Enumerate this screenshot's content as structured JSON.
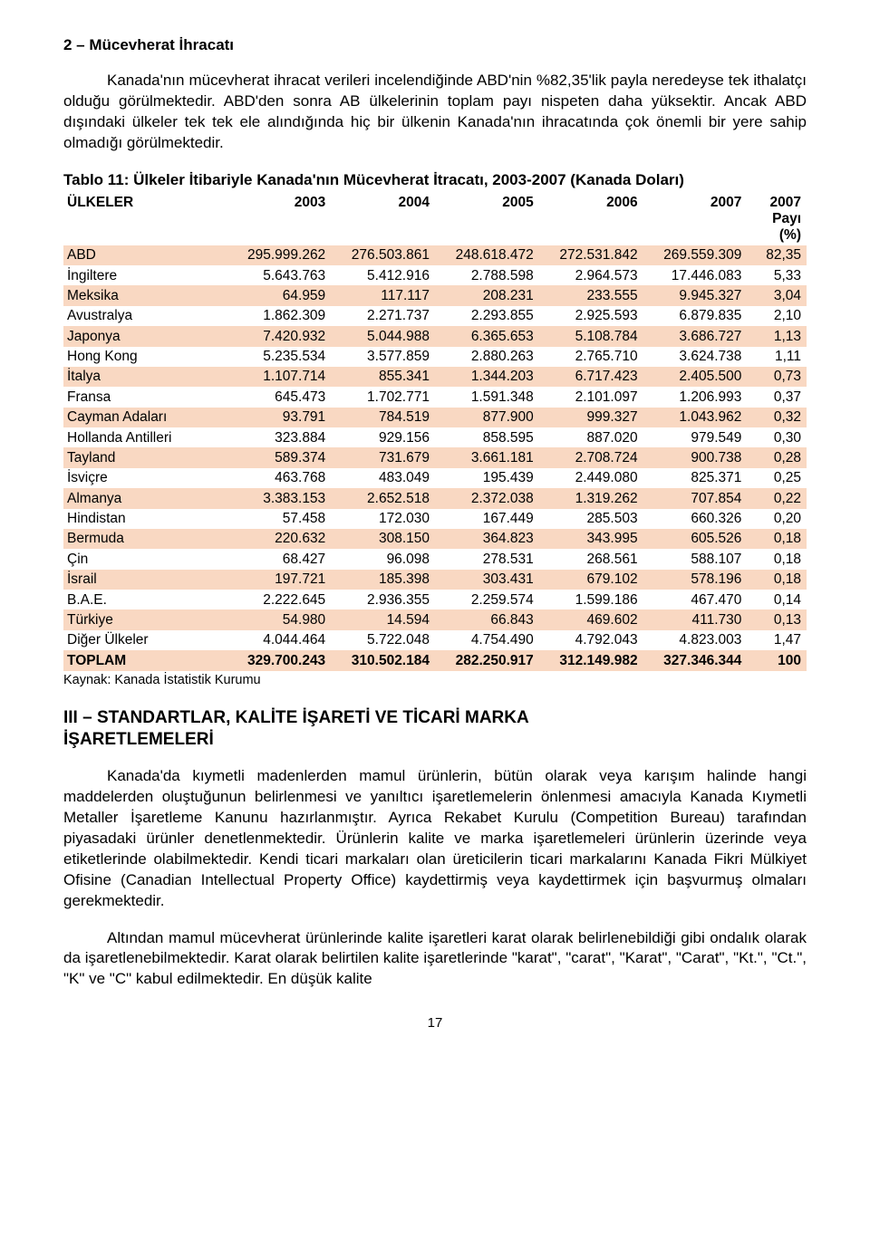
{
  "section_title": "2 – Mücevherat İhracatı",
  "para1": "Kanada'nın mücevherat ihracat verileri incelendiğinde ABD'nin %82,35'lik payla neredeyse tek ithalatçı olduğu görülmektedir. ABD'den sonra AB ülkelerinin toplam payı nispeten daha yüksektir. Ancak ABD dışındaki ülkeler tek tek ele alındığında hiç bir ülkenin Kanada'nın ihracatında çok önemli bir yere sahip olmadığı görülmektedir.",
  "table": {
    "caption": "Tablo 11: Ülkeler İtibariyle Kanada'nın Mücevherat İtracatı, 2003-2007 (Kanada Doları)",
    "columns": [
      "ÜLKELER",
      "2003",
      "2004",
      "2005",
      "2006",
      "2007",
      "2007 Payı (%)"
    ],
    "col_widths": [
      "22%",
      "14%",
      "14%",
      "14%",
      "14%",
      "14%",
      "8%"
    ],
    "header_bg": "#ffffff",
    "row_highlight_bg": "#f9d8c2",
    "row_plain_bg": "#ffffff",
    "source": "Kaynak: Kanada İstatistik Kurumu",
    "rows": [
      {
        "c": [
          "ABD",
          "295.999.262",
          "276.503.861",
          "248.618.472",
          "272.531.842",
          "269.559.309",
          "82,35"
        ],
        "hl": true
      },
      {
        "c": [
          "İngiltere",
          "5.643.763",
          "5.412.916",
          "2.788.598",
          "2.964.573",
          "17.446.083",
          "5,33"
        ],
        "hl": false
      },
      {
        "c": [
          "Meksika",
          "64.959",
          "117.117",
          "208.231",
          "233.555",
          "9.945.327",
          "3,04"
        ],
        "hl": true
      },
      {
        "c": [
          "Avustralya",
          "1.862.309",
          "2.271.737",
          "2.293.855",
          "2.925.593",
          "6.879.835",
          "2,10"
        ],
        "hl": false
      },
      {
        "c": [
          "Japonya",
          "7.420.932",
          "5.044.988",
          "6.365.653",
          "5.108.784",
          "3.686.727",
          "1,13"
        ],
        "hl": true
      },
      {
        "c": [
          "Hong Kong",
          "5.235.534",
          "3.577.859",
          "2.880.263",
          "2.765.710",
          "3.624.738",
          "1,11"
        ],
        "hl": false
      },
      {
        "c": [
          "İtalya",
          "1.107.714",
          "855.341",
          "1.344.203",
          "6.717.423",
          "2.405.500",
          "0,73"
        ],
        "hl": true
      },
      {
        "c": [
          "Fransa",
          "645.473",
          "1.702.771",
          "1.591.348",
          "2.101.097",
          "1.206.993",
          "0,37"
        ],
        "hl": false
      },
      {
        "c": [
          "Cayman Adaları",
          "93.791",
          "784.519",
          "877.900",
          "999.327",
          "1.043.962",
          "0,32"
        ],
        "hl": true
      },
      {
        "c": [
          "Hollanda Antilleri",
          "323.884",
          "929.156",
          "858.595",
          "887.020",
          "979.549",
          "0,30"
        ],
        "hl": false
      },
      {
        "c": [
          "Tayland",
          "589.374",
          "731.679",
          "3.661.181",
          "2.708.724",
          "900.738",
          "0,28"
        ],
        "hl": true
      },
      {
        "c": [
          "İsviçre",
          "463.768",
          "483.049",
          "195.439",
          "2.449.080",
          "825.371",
          "0,25"
        ],
        "hl": false
      },
      {
        "c": [
          "Almanya",
          "3.383.153",
          "2.652.518",
          "2.372.038",
          "1.319.262",
          "707.854",
          "0,22"
        ],
        "hl": true
      },
      {
        "c": [
          "Hindistan",
          "57.458",
          "172.030",
          "167.449",
          "285.503",
          "660.326",
          "0,20"
        ],
        "hl": false
      },
      {
        "c": [
          "Bermuda",
          "220.632",
          "308.150",
          "364.823",
          "343.995",
          "605.526",
          "0,18"
        ],
        "hl": true
      },
      {
        "c": [
          "Çin",
          "68.427",
          "96.098",
          "278.531",
          "268.561",
          "588.107",
          "0,18"
        ],
        "hl": false
      },
      {
        "c": [
          "İsrail",
          "197.721",
          "185.398",
          "303.431",
          "679.102",
          "578.196",
          "0,18"
        ],
        "hl": true
      },
      {
        "c": [
          "B.A.E.",
          "2.222.645",
          "2.936.355",
          "2.259.574",
          "1.599.186",
          "467.470",
          "0,14"
        ],
        "hl": false
      },
      {
        "c": [
          "Türkiye",
          "54.980",
          "14.594",
          "66.843",
          "469.602",
          "411.730",
          "0,13"
        ],
        "hl": true
      },
      {
        "c": [
          "Diğer Ülkeler",
          "4.044.464",
          "5.722.048",
          "4.754.490",
          "4.792.043",
          "4.823.003",
          "1,47"
        ],
        "hl": false
      },
      {
        "c": [
          "TOPLAM",
          "329.700.243",
          "310.502.184",
          "282.250.917",
          "312.149.982",
          "327.346.344",
          "100"
        ],
        "hl": true,
        "total": true
      }
    ]
  },
  "h2_line1": "III – STANDARTLAR, KALİTE İŞARETİ VE TİCARİ MARKA",
  "h2_line2": "İŞARETLEMELERİ",
  "para2": "Kanada'da kıymetli madenlerden mamul ürünlerin, bütün olarak veya karışım halinde hangi maddelerden oluştuğunun belirlenmesi ve yanıltıcı işaretlemelerin önlenmesi amacıyla Kanada Kıymetli Metaller İşaretleme Kanunu hazırlanmıştır. Ayrıca Rekabet Kurulu (Competition Bureau) tarafından piyasadaki ürünler denetlenmektedir. Ürünlerin kalite ve marka işaretlemeleri ürünlerin üzerinde veya etiketlerinde olabilmektedir. Kendi ticari markaları olan üreticilerin ticari markalarını Kanada Fikri Mülkiyet Ofisine (Canadian Intellectual Property Office) kaydettirmiş veya kaydettirmek için başvurmuş olmaları gerekmektedir.",
  "para3": "Altından mamul mücevherat ürünlerinde kalite işaretleri karat olarak belirlenebildiği gibi ondalık olarak da işaretlenebilmektedir. Karat olarak belirtilen kalite işaretlerinde \"karat\", \"carat\", \"Karat\", \"Carat\", \"Kt.\", \"Ct.\", \"K\" ve \"C\" kabul edilmektedir. En düşük kalite",
  "page_number": "17"
}
